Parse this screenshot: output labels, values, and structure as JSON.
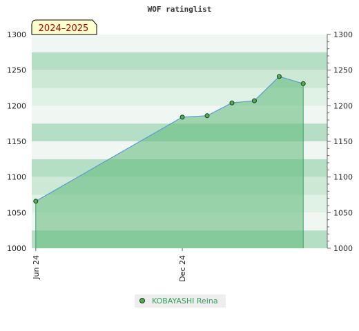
{
  "chart_data": {
    "type": "area",
    "title": "WOF ratinglist",
    "season_label": "2024–2025",
    "ylim": [
      1000,
      1300
    ],
    "y_ticks": [
      1000,
      1050,
      1100,
      1150,
      1200,
      1250,
      1300
    ],
    "x_ticks": [
      {
        "label": "Jun 24",
        "x": "2024-06-01"
      },
      {
        "label": "Dec 24",
        "x": "2024-12-01"
      }
    ],
    "x_range": [
      "2024-05-27",
      "2025-05-31"
    ],
    "series": [
      {
        "name": "KOBAYASHI Reina",
        "line_color": "#5a9bd5",
        "fill_color": "#5cb878",
        "marker_color": "#4caf50",
        "points": [
          {
            "x": "2024-06-01",
            "y": 1066
          },
          {
            "x": "2024-12-01",
            "y": 1184
          },
          {
            "x": "2025-01-01",
            "y": 1186
          },
          {
            "x": "2025-02-01",
            "y": 1204
          },
          {
            "x": "2025-03-01",
            "y": 1207
          },
          {
            "x": "2025-04-01",
            "y": 1241
          },
          {
            "x": "2025-05-01",
            "y": 1231
          }
        ]
      }
    ]
  }
}
